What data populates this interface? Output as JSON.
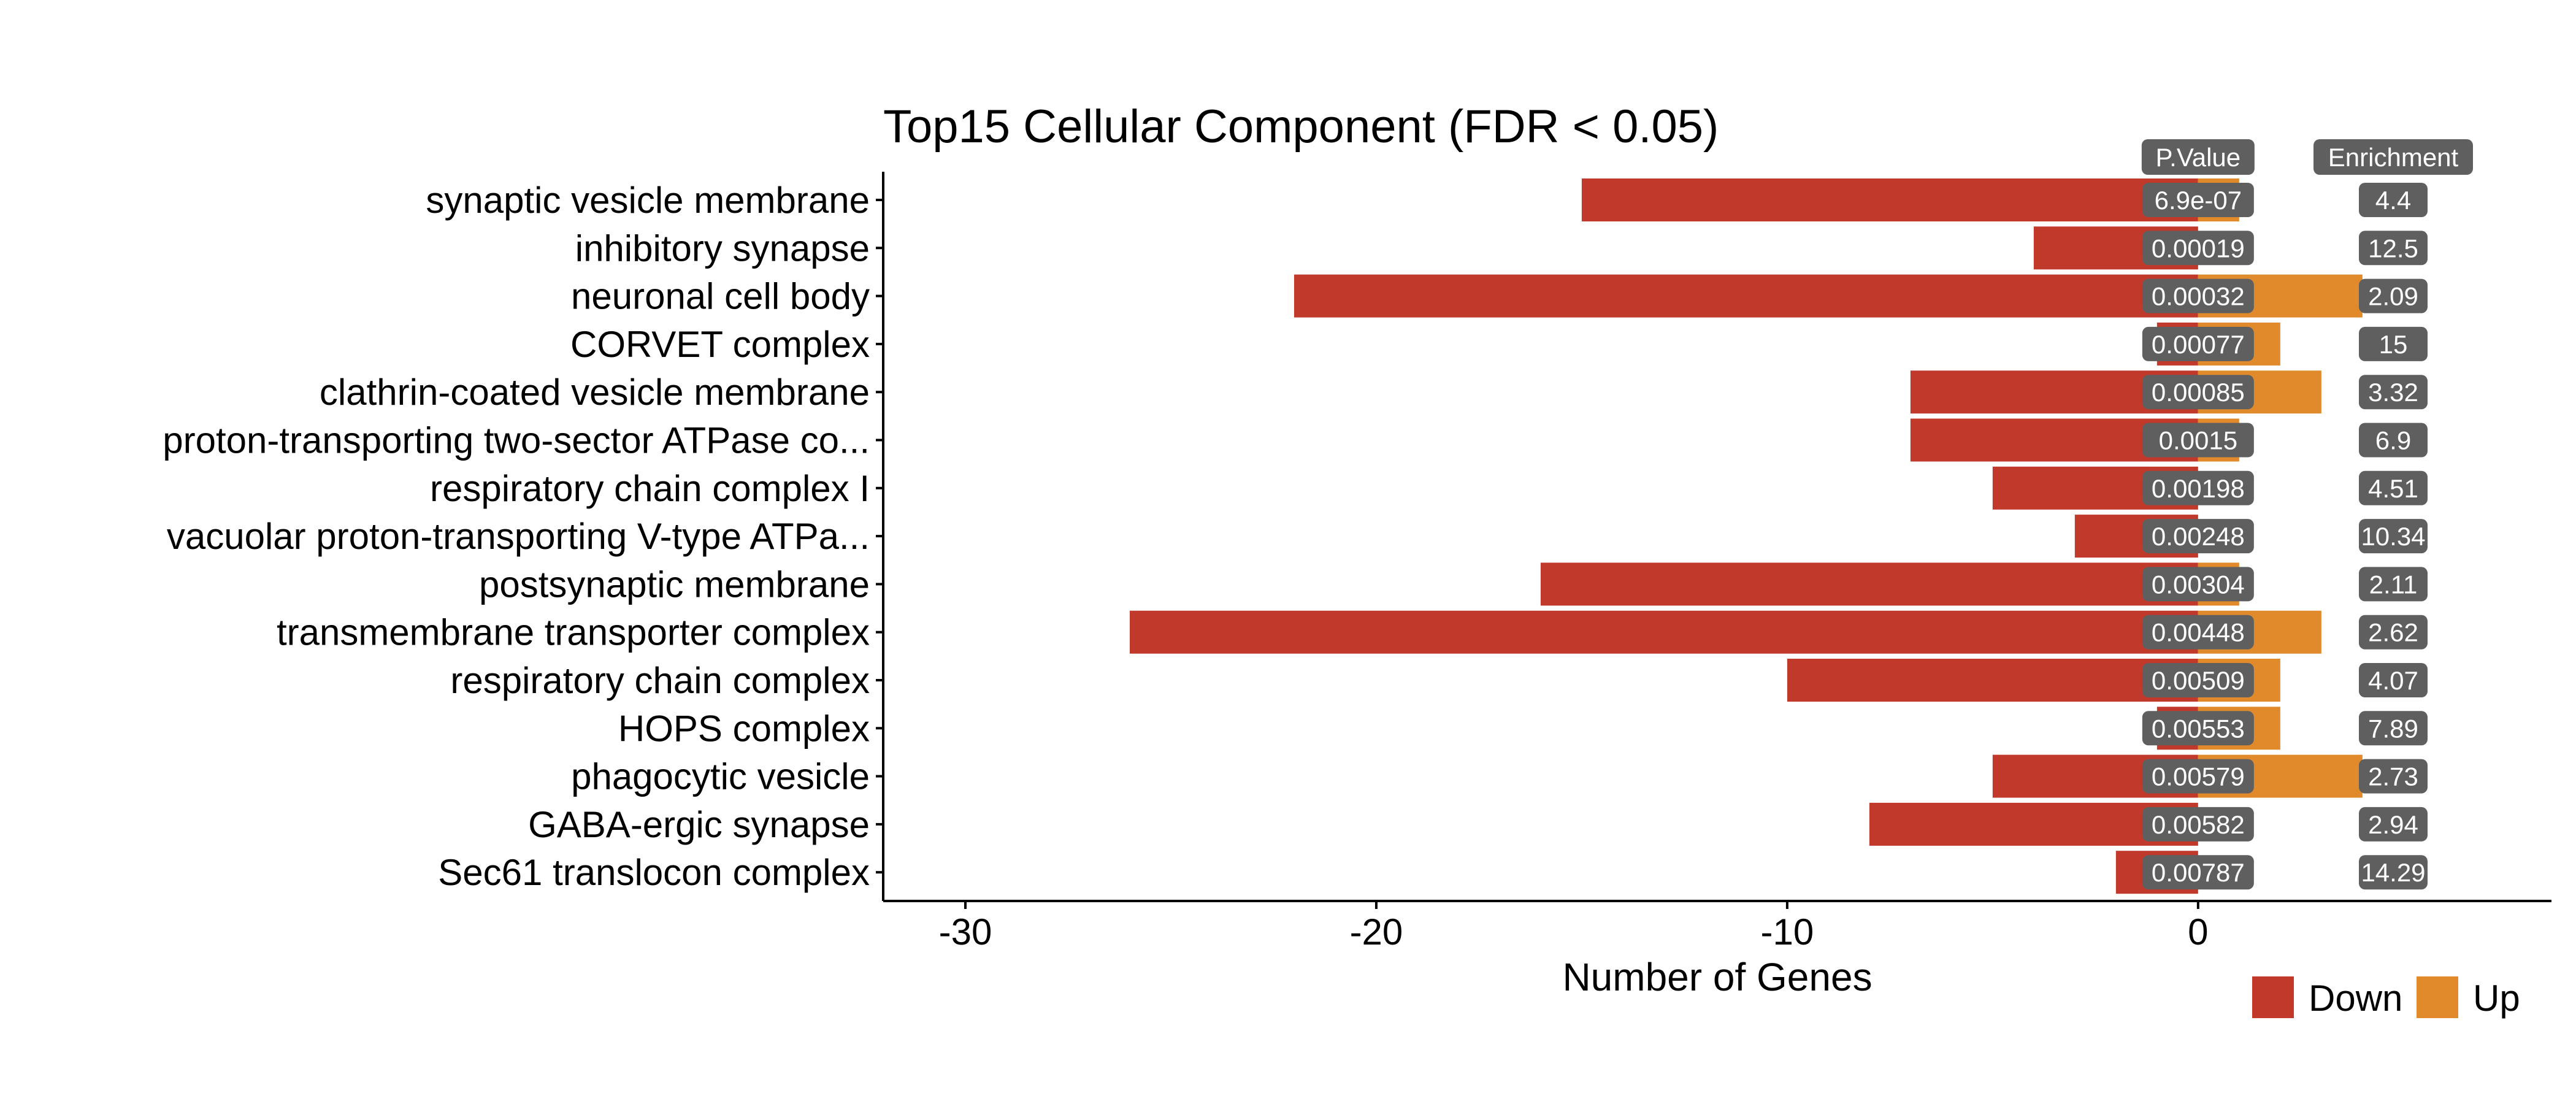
{
  "chart_data": {
    "type": "bar",
    "orientation": "horizontal",
    "title": "Top15 Cellular Component (FDR < 0.05)",
    "xlabel": "Number of Genes",
    "ylabel": "",
    "xlim": [
      -32,
      8.6
    ],
    "xticks": [
      -30,
      -20,
      -10,
      0
    ],
    "xtick_labels": [
      "-30",
      "-20",
      "-10",
      "0"
    ],
    "grid": false,
    "categories": [
      "synaptic vesicle membrane",
      "inhibitory synapse",
      "neuronal cell body",
      "CORVET complex",
      "clathrin-coated vesicle membrane",
      "proton-transporting two-sector ATPase co...",
      "respiratory chain complex I",
      "vacuolar proton-transporting V-type ATPa...",
      "postsynaptic membrane",
      "transmembrane transporter complex",
      "respiratory chain complex",
      "HOPS complex",
      "phagocytic vesicle",
      "GABA-ergic synapse",
      "Sec61 translocon complex"
    ],
    "series": [
      {
        "name": "Down",
        "color": "#c0392b",
        "values": [
          -15,
          -4,
          -22,
          -1,
          -7,
          -7,
          -5,
          -3,
          -16,
          -26,
          -10,
          -1,
          -5,
          -8,
          -2
        ]
      },
      {
        "name": "Up",
        "color": "#e08a2c",
        "values": [
          1,
          0,
          4,
          2,
          3,
          1,
          0,
          0,
          1,
          3,
          2,
          2,
          4,
          0,
          0
        ]
      }
    ],
    "columns": {
      "pvalue_header": "P.Value",
      "enrichment_header": "Enrichment",
      "pvalue": [
        "6.9e-07",
        "0.00019",
        "0.00032",
        "0.00077",
        "0.00085",
        "0.0015",
        "0.00198",
        "0.00248",
        "0.00304",
        "0.00448",
        "0.00509",
        "0.00553",
        "0.00579",
        "0.00582",
        "0.00787"
      ],
      "enrichment": [
        "4.4",
        "12.5",
        "2.09",
        "15",
        "3.32",
        "6.9",
        "4.51",
        "10.34",
        "2.11",
        "2.62",
        "4.07",
        "7.89",
        "2.73",
        "2.94",
        "14.29"
      ]
    },
    "legend": {
      "position": "bottom-right",
      "items": [
        "Down",
        "Up"
      ]
    },
    "label_box_color": "#5f5f5f"
  }
}
